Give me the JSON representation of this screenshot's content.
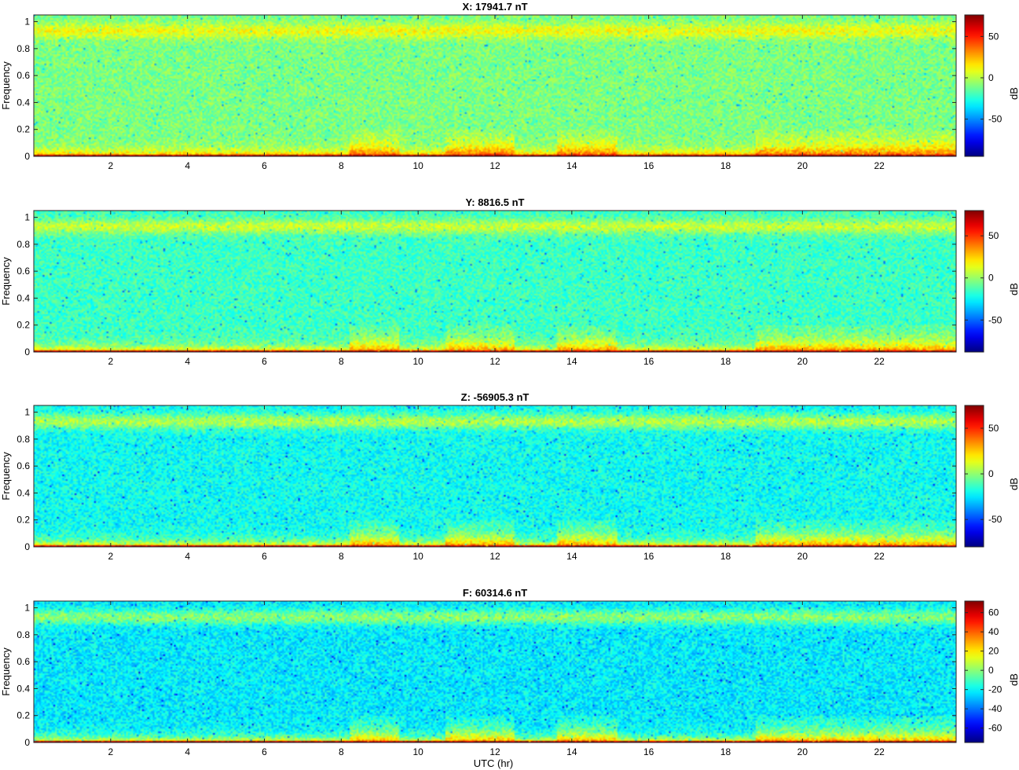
{
  "figure": {
    "xlabel": "UTC (hr)"
  },
  "chart_data": [
    {
      "type": "heatmap",
      "title": "X: 17941.7 nT",
      "ylabel": "Frequency",
      "colorbar_label": "dB",
      "x_range": [
        0,
        24
      ],
      "y_range": [
        0,
        1.05
      ],
      "x_ticks": [
        2,
        4,
        6,
        8,
        10,
        12,
        14,
        16,
        18,
        20,
        22
      ],
      "y_ticks": [
        0,
        0.2,
        0.4,
        0.6,
        0.8,
        1
      ],
      "clim": [
        -95,
        76
      ],
      "colorbar_ticks": [
        -50,
        0,
        50
      ],
      "colormap": "jet",
      "features": {
        "band_near_1_level_db": 10,
        "background_level_db": -10,
        "low_frequency_level_db": 40,
        "bottom_row_level_db": 70,
        "elevated_low_freq_periods_hr": [
          [
            8.2,
            9.5
          ],
          [
            10.7,
            12.5
          ],
          [
            13.6,
            15.2
          ],
          [
            18.8,
            24
          ]
        ]
      }
    },
    {
      "type": "heatmap",
      "title": "Y: 8816.5 nT",
      "ylabel": "Frequency",
      "colorbar_label": "dB",
      "x_range": [
        0,
        24
      ],
      "y_range": [
        0,
        1.05
      ],
      "x_ticks": [
        2,
        4,
        6,
        8,
        10,
        12,
        14,
        16,
        18,
        20,
        22
      ],
      "y_ticks": [
        0,
        0.2,
        0.4,
        0.6,
        0.8,
        1
      ],
      "clim": [
        -88,
        80
      ],
      "colorbar_ticks": [
        -50,
        0,
        50
      ],
      "colormap": "jet",
      "features": {
        "band_near_1_level_db": 8,
        "background_level_db": -15,
        "low_frequency_level_db": 38,
        "bottom_row_level_db": 70,
        "elevated_low_freq_periods_hr": [
          [
            8.2,
            9.5
          ],
          [
            10.7,
            12.5
          ],
          [
            13.6,
            15.2
          ],
          [
            18.8,
            24
          ]
        ]
      }
    },
    {
      "type": "heatmap",
      "title": "Z: -56905.3 nT",
      "ylabel": "Frequency",
      "colorbar_label": "dB",
      "x_range": [
        0,
        24
      ],
      "y_range": [
        0,
        1.05
      ],
      "x_ticks": [
        2,
        4,
        6,
        8,
        10,
        12,
        14,
        16,
        18,
        20,
        22
      ],
      "y_ticks": [
        0,
        0.2,
        0.4,
        0.6,
        0.8,
        1
      ],
      "clim": [
        -80,
        75
      ],
      "colorbar_ticks": [
        -50,
        0,
        50
      ],
      "colormap": "jet",
      "features": {
        "band_near_1_level_db": 5,
        "background_level_db": -20,
        "low_frequency_level_db": 35,
        "bottom_row_level_db": 65,
        "elevated_low_freq_periods_hr": [
          [
            8.2,
            9.5
          ],
          [
            10.7,
            12.5
          ],
          [
            13.6,
            15.2
          ],
          [
            18.8,
            24
          ]
        ]
      }
    },
    {
      "type": "heatmap",
      "title": "F: 60314.6 nT",
      "ylabel": "Frequency",
      "colorbar_label": "dB",
      "x_range": [
        0,
        24
      ],
      "y_range": [
        0,
        1.05
      ],
      "x_ticks": [
        2,
        4,
        6,
        8,
        10,
        12,
        14,
        16,
        18,
        20,
        22
      ],
      "y_ticks": [
        0,
        0.2,
        0.4,
        0.6,
        0.8,
        1
      ],
      "clim": [
        -75,
        72
      ],
      "colorbar_ticks": [
        -60,
        -40,
        -20,
        0,
        20,
        40,
        60
      ],
      "colormap": "jet",
      "features": {
        "band_near_1_level_db": 0,
        "background_level_db": -22,
        "low_frequency_level_db": 30,
        "bottom_row_level_db": 65,
        "elevated_low_freq_periods_hr": [
          [
            8.2,
            9.5
          ],
          [
            10.7,
            12.5
          ],
          [
            13.6,
            15.2
          ],
          [
            18.8,
            24
          ]
        ]
      }
    }
  ]
}
